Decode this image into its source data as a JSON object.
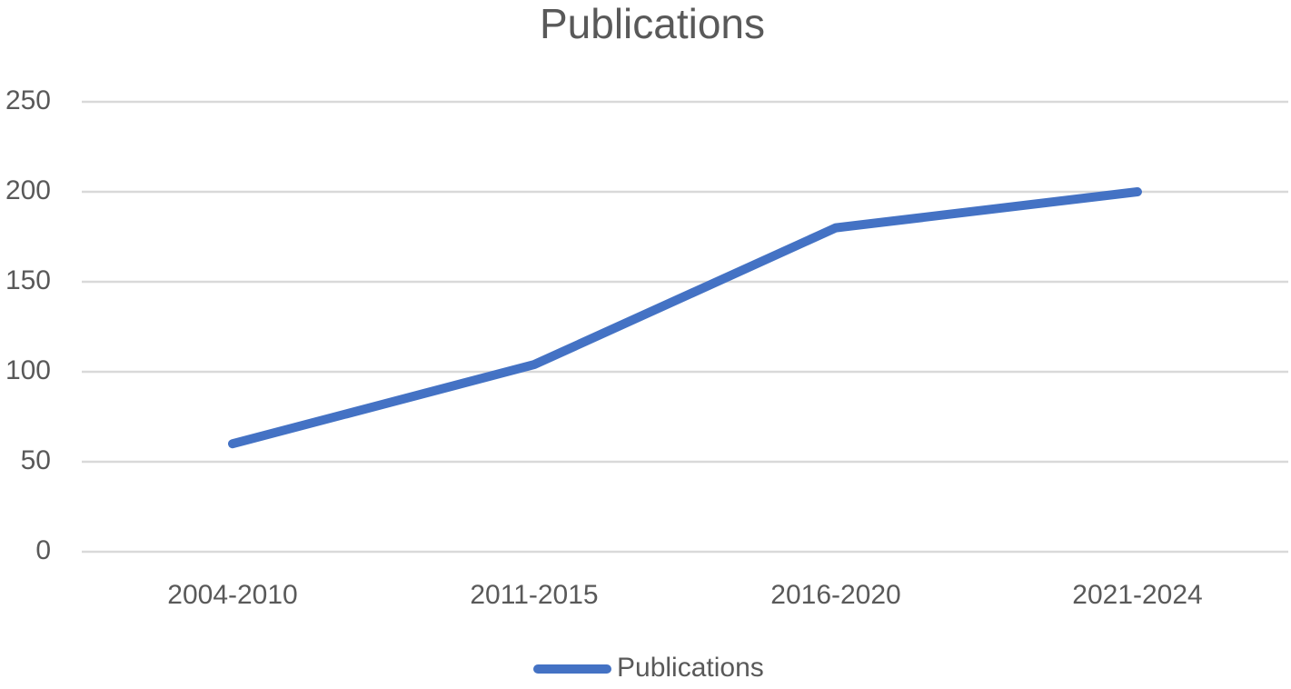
{
  "chart_data": {
    "type": "line",
    "title": "Publications",
    "categories": [
      "2004-2010",
      "2011-2015",
      "2016-2020",
      "2021-2024"
    ],
    "series": [
      {
        "name": "Publications",
        "color": "#4472c4",
        "values": [
          60,
          104,
          180,
          200
        ]
      }
    ],
    "ylim": [
      0,
      250
    ],
    "yticks": [
      0,
      50,
      100,
      150,
      200,
      250
    ],
    "grid": true,
    "legend": "bottom"
  }
}
